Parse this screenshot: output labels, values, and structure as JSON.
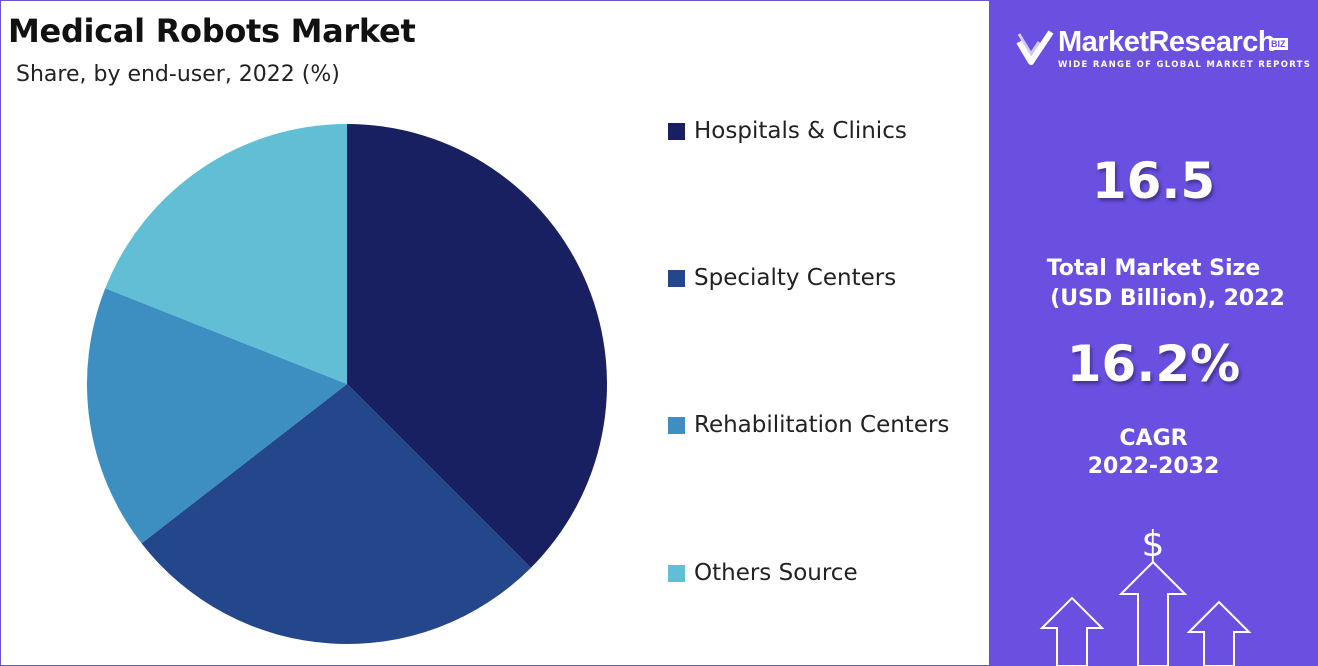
{
  "header": {
    "title": "Medical Robots Market",
    "subtitle": "Share, by end-user, 2022 (%)"
  },
  "chart_data": {
    "type": "pie",
    "title": "Medical Robots Market",
    "subtitle": "Share, by end-user, 2022 (%)",
    "legend_position": "right",
    "slices": [
      {
        "label": "Hospitals & Clinics",
        "value": 37.5,
        "color": "#182062"
      },
      {
        "label": "Specialty Centers",
        "value": 27.0,
        "color": "#24468a"
      },
      {
        "label": "Rehabilitation Centers",
        "value": 16.5,
        "color": "#3c8fc0"
      },
      {
        "label": "Others Source",
        "value": 19.0,
        "color": "#62bed4"
      }
    ]
  },
  "sidebar": {
    "brand_name": "MarketResearch",
    "brand_badge": "BIZ",
    "brand_tagline": "WIDE RANGE OF GLOBAL MARKET REPORTS",
    "market_size_value": "16.5",
    "market_size_label_line1": "Total Market Size",
    "market_size_label_line2": "(USD Billion), 2022",
    "cagr_value": "16.2%",
    "cagr_label_line1": "CAGR",
    "cagr_label_line2": "2022-2032",
    "dollar_symbol": "$",
    "background_color": "#6a4fe0",
    "icon": "growth-arrows-icon"
  }
}
